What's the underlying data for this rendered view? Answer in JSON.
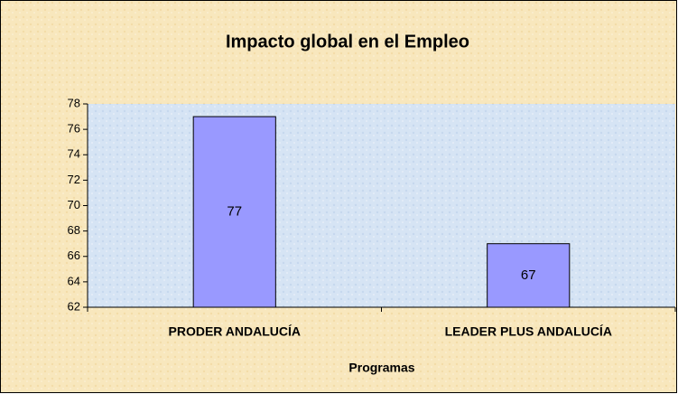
{
  "chart_data": {
    "type": "bar",
    "title": "Impacto global en el Empleo",
    "categories": [
      "PRODER ANDALUCÍA",
      "LEADER PLUS ANDALUCÍA"
    ],
    "values": [
      77,
      67
    ],
    "color": "#9999ff",
    "ylim": [
      62,
      78
    ],
    "yticks": [
      62,
      64,
      66,
      68,
      70,
      72,
      74,
      76,
      78
    ],
    "x_label": "Programas",
    "data_labels": true
  }
}
